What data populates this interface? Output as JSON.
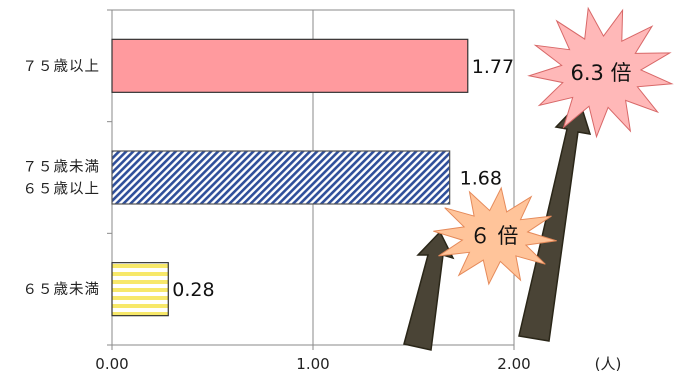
{
  "chart_data": {
    "type": "bar",
    "orientation": "horizontal",
    "categories": [
      "７５歳以上",
      "７５歳未満\n６５歳以上",
      "６５歳未満"
    ],
    "values": [
      1.77,
      1.68,
      0.28
    ],
    "data_labels": [
      "1.77",
      "1.68",
      "0.28"
    ],
    "xlim": [
      0,
      2.0
    ],
    "xticks": [
      "0.00",
      "1.00",
      "2.00"
    ],
    "x_unit": "(人)",
    "grid": true,
    "annotations": [
      "6.3 倍",
      "６ 倍"
    ],
    "colors": {
      "top_bar": "#ff9a9e",
      "top_bar_border": "#333333",
      "mid_bar": "#2f4f9a",
      "bot_bar": "#f7e86a",
      "arrow": "#4a4436",
      "burst_top": "#ffb8b8",
      "burst_mid": "#ffc49a"
    }
  }
}
